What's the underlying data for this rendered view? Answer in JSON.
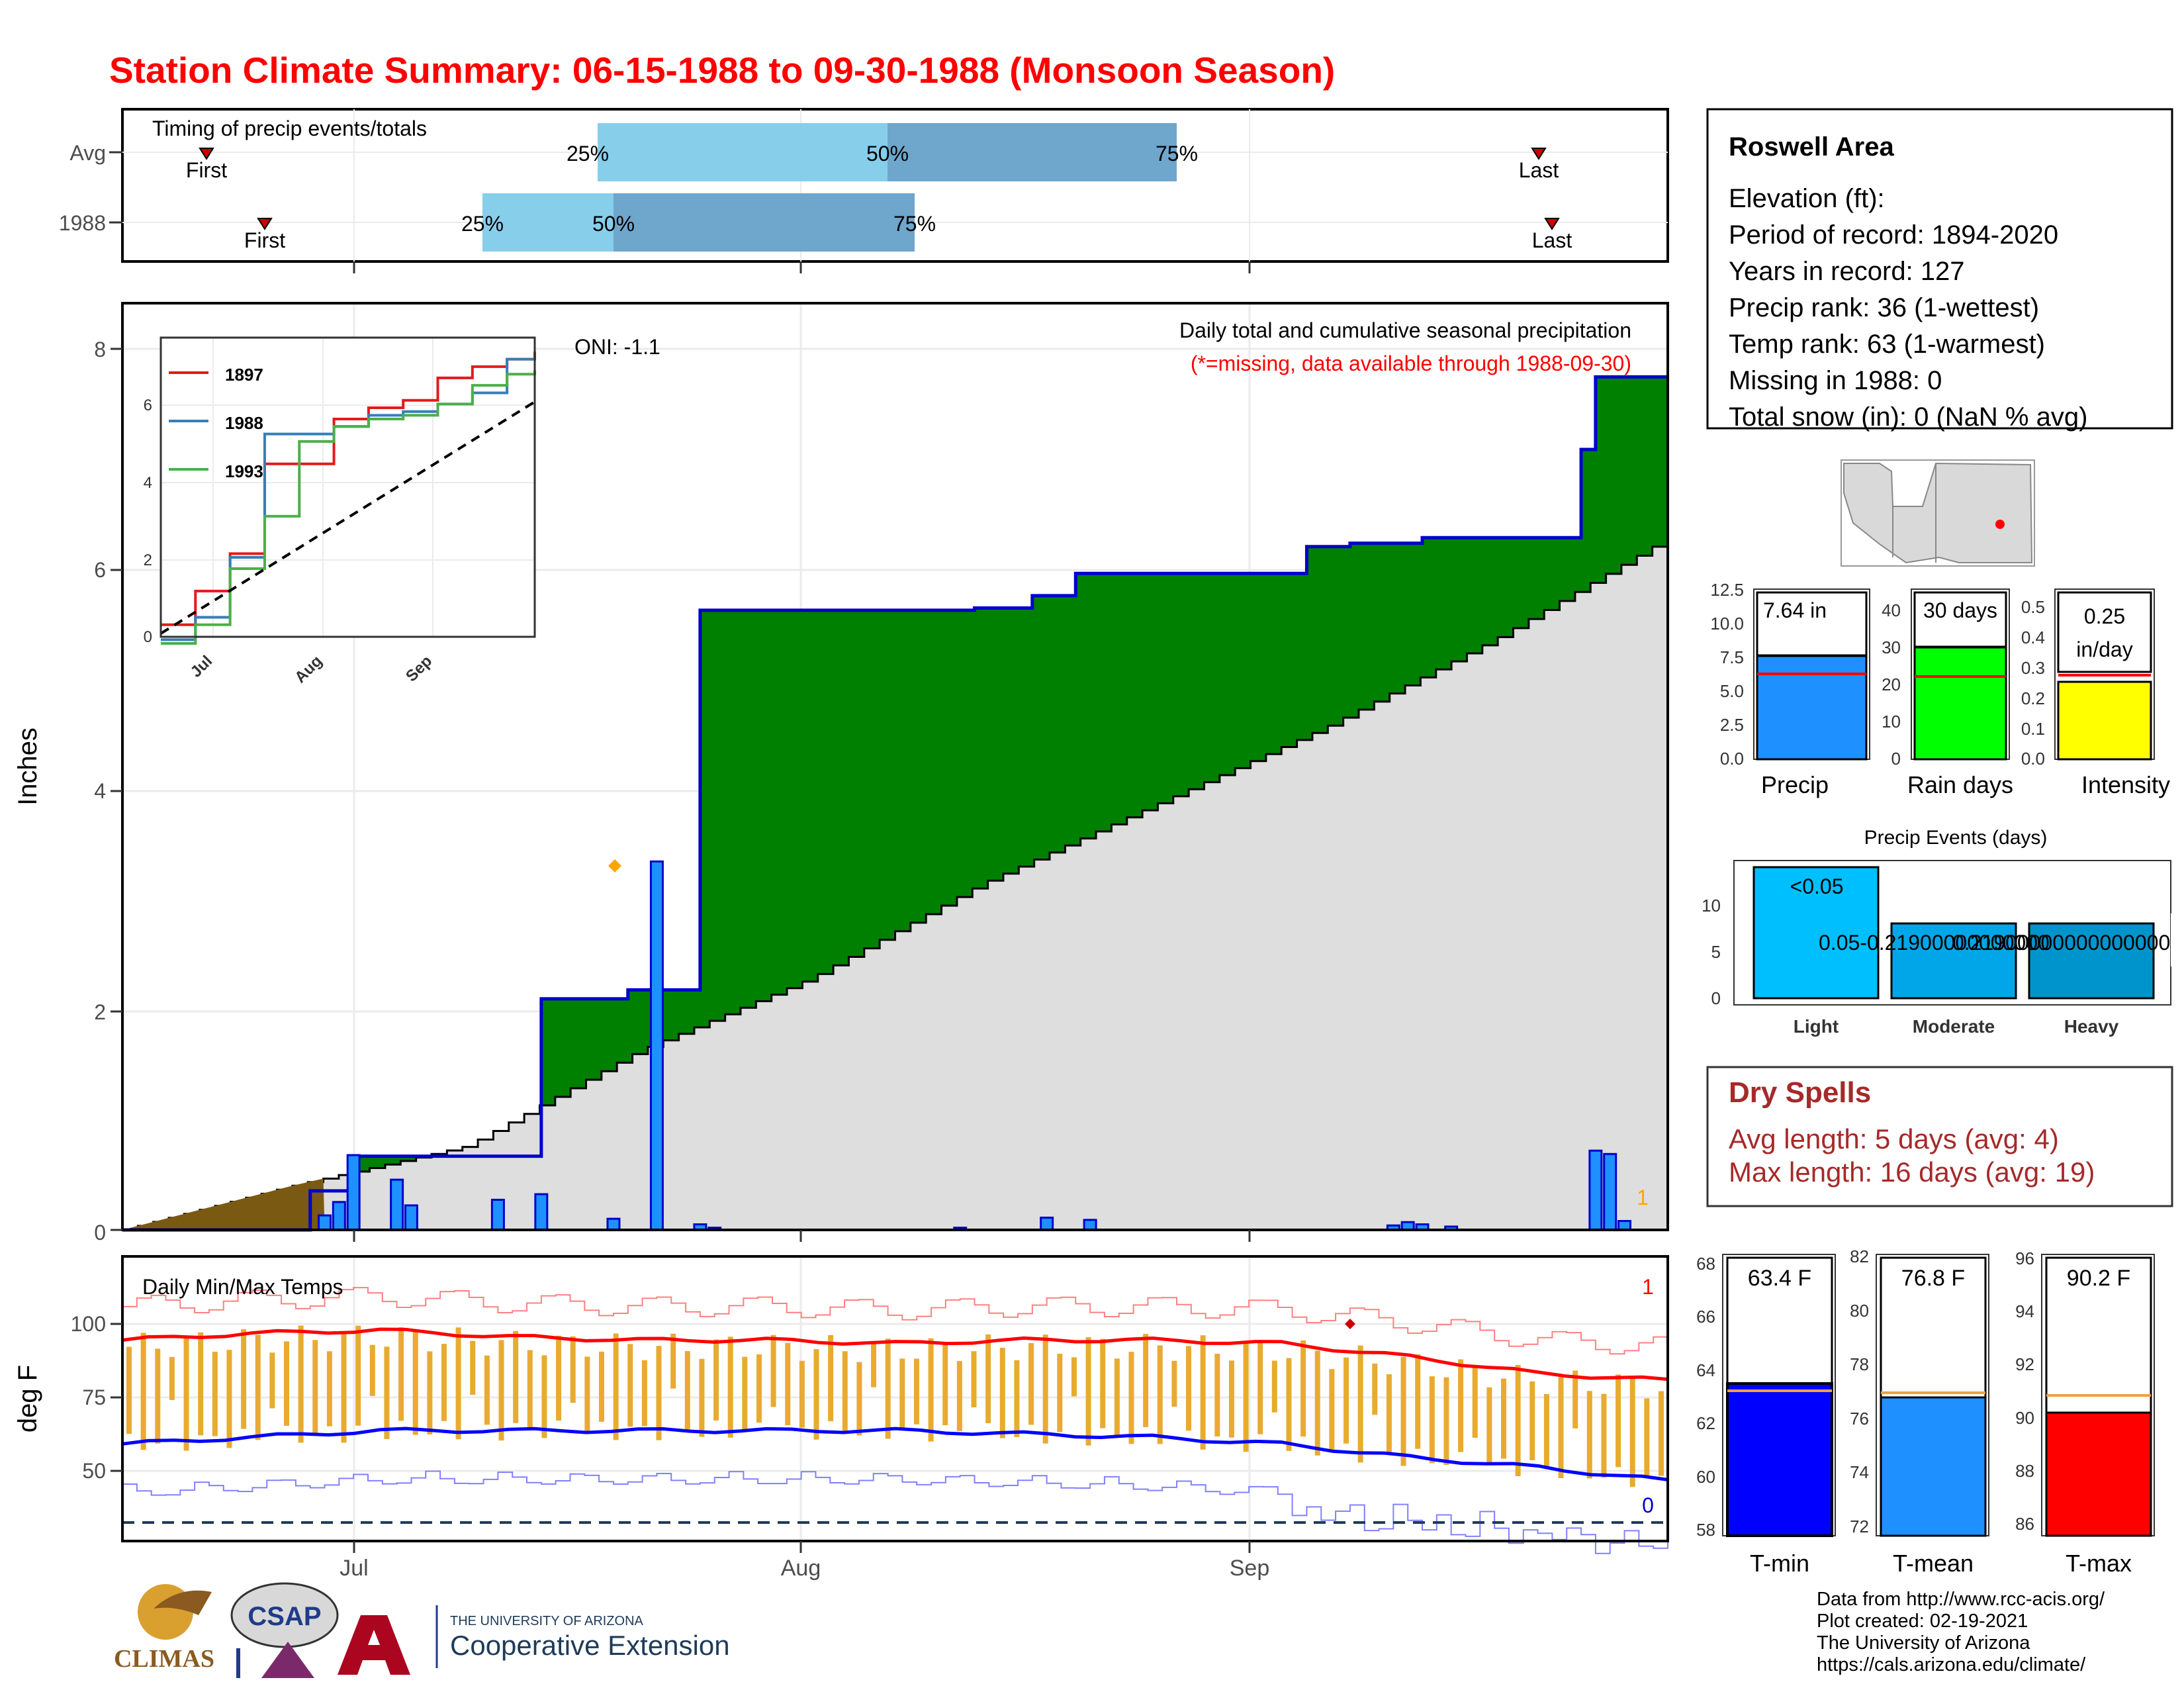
{
  "title": "Station Climate Summary: 06-15-1988 to 09-30-1988 (Monsoon Season)",
  "colors": {
    "title": "#ff0000",
    "precip_area": "#008000",
    "normal_area": "#dedede",
    "drought_area": "#7a5a12",
    "bar_blue": "#1e90ff",
    "outline_blue": "#0000cd",
    "tmax": "#ff0000",
    "tmin": "#0000ff",
    "range_bar": "#e8ab30",
    "quart_light": "#87ceeb",
    "quart_dark": "#6ea6cc",
    "dry_spell": "#a52a2a"
  },
  "timing": {
    "label": "Timing of precip events/totals",
    "rows": [
      {
        "name": "Avg",
        "first_label": "First",
        "last_label": "Last",
        "q25": "25%",
        "q50": "50%",
        "q75": "75%"
      },
      {
        "name": "1988",
        "first_label": "First",
        "last_label": "Last",
        "q25": "25%",
        "q50": "50%",
        "q75": "75%"
      }
    ]
  },
  "main": {
    "ylabel": "Inches",
    "oni": "ONI: -1.1",
    "subtitle": "Daily total and cumulative seasonal precipitation",
    "subtitle2": "(*=missing, data available through 1988-09-30)",
    "corner": "1",
    "yticks": [
      "0",
      "2",
      "4",
      "6",
      "8"
    ]
  },
  "inset": {
    "legend": [
      "1897",
      "1988",
      "1993"
    ],
    "yticks": [
      "0",
      "2",
      "4",
      "6"
    ],
    "xticks": [
      "Jul",
      "Aug",
      "Sep"
    ]
  },
  "temps": {
    "label": "Daily Min/Max Temps",
    "ylabel": "deg F",
    "yticks": [
      "50",
      "75",
      "100"
    ],
    "xticks": [
      "Jul",
      "Aug",
      "Sep"
    ],
    "corner_top": "1",
    "corner_bottom": "0"
  },
  "station": {
    "name": "Roswell Area",
    "lines": [
      "Elevation (ft):",
      "Period of record: 1894-2020",
      "Years in record: 127",
      "Precip rank: 36 (1-wettest)",
      "Temp rank: 63 (1-warmest)",
      "Missing in 1988: 0",
      "Total snow (in): 0 (NaN % avg)"
    ]
  },
  "summary_bars": [
    {
      "name": "Precip",
      "label": "7.64 in",
      "yticks": [
        "0.0",
        "2.5",
        "5.0",
        "7.5",
        "10.0",
        "12.5"
      ]
    },
    {
      "name": "Rain days",
      "label": "30 days",
      "yticks": [
        "0",
        "10",
        "20",
        "30",
        "40"
      ]
    },
    {
      "name": "Intensity",
      "label1": "0.25",
      "label2": "in/day",
      "yticks": [
        "0.0",
        "0.1",
        "0.2",
        "0.3",
        "0.4",
        "0.5"
      ]
    }
  ],
  "events": {
    "title": "Precip Events (days)",
    "yticks": [
      "0",
      "5",
      "10"
    ],
    "categories": [
      "Light",
      "Moderate",
      "Heavy"
    ],
    "labels": [
      "<0.05",
      "0.05-0.21900000000000",
      "0.219000000000000000"
    ]
  },
  "dry_spells": {
    "title": "Dry Spells",
    "avg": "Avg length: 5 days (avg: 4)",
    "max": "Max length: 16 days (avg: 19)"
  },
  "temp_bars": [
    {
      "name": "T-min",
      "label": "63.4 F",
      "yticks": [
        "58",
        "60",
        "62",
        "64",
        "66",
        "68"
      ]
    },
    {
      "name": "T-mean",
      "label": "76.8 F",
      "yticks": [
        "72",
        "74",
        "76",
        "78",
        "80",
        "82"
      ]
    },
    {
      "name": "T-max",
      "label": "90.2 F",
      "yticks": [
        "86",
        "88",
        "90",
        "92",
        "94",
        "96"
      ]
    }
  ],
  "credits": [
    "Data from http://www.rcc-acis.org/",
    "Plot created: 02-19-2021",
    "The University of Arizona",
    "https://cals.arizona.edu/climate/"
  ],
  "logos": {
    "climas": "CLIMAS",
    "csap": "CSAP",
    "ua_small": "THE UNIVERSITY OF ARIZONA",
    "ua_big": "Cooperative Extension"
  },
  "chart_data": [
    {
      "type": "area",
      "title": "Daily total and cumulative seasonal precipitation",
      "ylabel": "Inches",
      "ylim": [
        0,
        8.3
      ],
      "x_range": [
        "1988-06-15",
        "1988-09-30"
      ],
      "series": [
        {
          "name": "1988",
          "x": [
            "06-15",
            "06-28",
            "07-01",
            "07-03",
            "07-14",
            "07-20",
            "07-25",
            "07-26",
            "08-13",
            "08-17",
            "08-20",
            "09-05",
            "09-08",
            "09-13",
            "09-24",
            "09-25",
            "09-30"
          ],
          "values": [
            0.0,
            0.35,
            0.66,
            0.66,
            2.07,
            2.15,
            5.55,
            5.55,
            5.57,
            5.68,
            5.88,
            6.12,
            6.15,
            6.2,
            6.99,
            7.64,
            7.64
          ]
        },
        {
          "values": [
            0.0,
            0.4,
            0.75,
            1.6,
            2.25,
            3.1,
            3.8,
            4.5,
            5.3,
            6.2
          ]
        }
      ],
      "daily_bars_x": [
        "06-29",
        "06-30",
        "07-01",
        "07-04",
        "07-05",
        "07-11",
        "07-14",
        "07-19",
        "07-22",
        "07-25",
        "07-26",
        "08-12",
        "08-18",
        "08-21",
        "09-11",
        "09-12",
        "09-13",
        "09-15",
        "09-25",
        "09-26",
        "09-27"
      ],
      "daily_bars_values": [
        0.13,
        0.25,
        0.67,
        0.45,
        0.22,
        0.27,
        0.32,
        0.1,
        3.3,
        0.05,
        0.02,
        0.02,
        0.11,
        0.09,
        0.04,
        0.07,
        0.05,
        0.03,
        0.71,
        0.68,
        0.08
      ]
    },
    {
      "type": "line",
      "legend": [
        "1897",
        "1988",
        "1993"
      ],
      "ylim": [
        0,
        8
      ],
      "series": [
        {
          "name": "1897",
          "x": [
            0,
            10,
            20,
            30,
            40,
            50,
            60,
            70,
            80,
            90,
            100,
            108
          ],
          "values": [
            0.5,
            1.4,
            2.4,
            4.8,
            4.8,
            6.0,
            6.3,
            6.5,
            7.1,
            7.4,
            7.6,
            7.8
          ]
        },
        {
          "name": "1988",
          "x": [
            0,
            10,
            20,
            30,
            40,
            50,
            60,
            70,
            80,
            90,
            100,
            108
          ],
          "values": [
            0.1,
            0.7,
            2.3,
            5.6,
            5.6,
            5.8,
            6.1,
            6.2,
            6.4,
            6.7,
            7.6,
            7.6
          ]
        },
        {
          "name": "1993",
          "x": [
            0,
            10,
            20,
            30,
            40,
            50,
            60,
            70,
            80,
            90,
            100,
            108
          ],
          "values": [
            0.0,
            0.5,
            2.0,
            3.4,
            5.4,
            5.8,
            6.0,
            6.1,
            6.4,
            6.9,
            7.2,
            7.3
          ]
        }
      ]
    },
    {
      "type": "line",
      "title": "Daily Min/Max Temps",
      "ylabel": "deg F",
      "ylim": [
        33,
        118
      ],
      "series": [
        {
          "name": "avg max",
          "values": [
            93,
            95,
            96,
            94,
            93,
            93,
            92,
            93,
            93,
            92,
            88,
            83,
            81
          ]
        },
        {
          "name": "avg min",
          "values": [
            62,
            64,
            66,
            66,
            66,
            66,
            66,
            65,
            64,
            62,
            58,
            55,
            51
          ]
        }
      ]
    },
    {
      "type": "bar",
      "categories": [
        "Precip",
        "Rain days",
        "Intensity"
      ],
      "values": [
        7.64,
        30,
        0.25
      ],
      "averages": [
        6.3,
        22,
        0.27
      ],
      "ylims": [
        [
          0,
          12.5
        ],
        [
          0,
          40
        ],
        [
          0,
          0.5
        ]
      ]
    },
    {
      "type": "bar",
      "title": "Precip Events (days)",
      "categories": [
        "Light",
        "Moderate",
        "Heavy"
      ],
      "values": [
        14,
        8,
        8
      ],
      "ylim": [
        0,
        14
      ]
    },
    {
      "type": "bar",
      "categories": [
        "T-min",
        "T-mean",
        "T-max"
      ],
      "values": [
        63.4,
        76.8,
        90.2
      ],
      "averages": [
        63.1,
        77.0,
        91.0
      ],
      "ylims": [
        [
          58,
          68
        ],
        [
          72,
          82
        ],
        [
          86,
          96
        ]
      ]
    }
  ]
}
